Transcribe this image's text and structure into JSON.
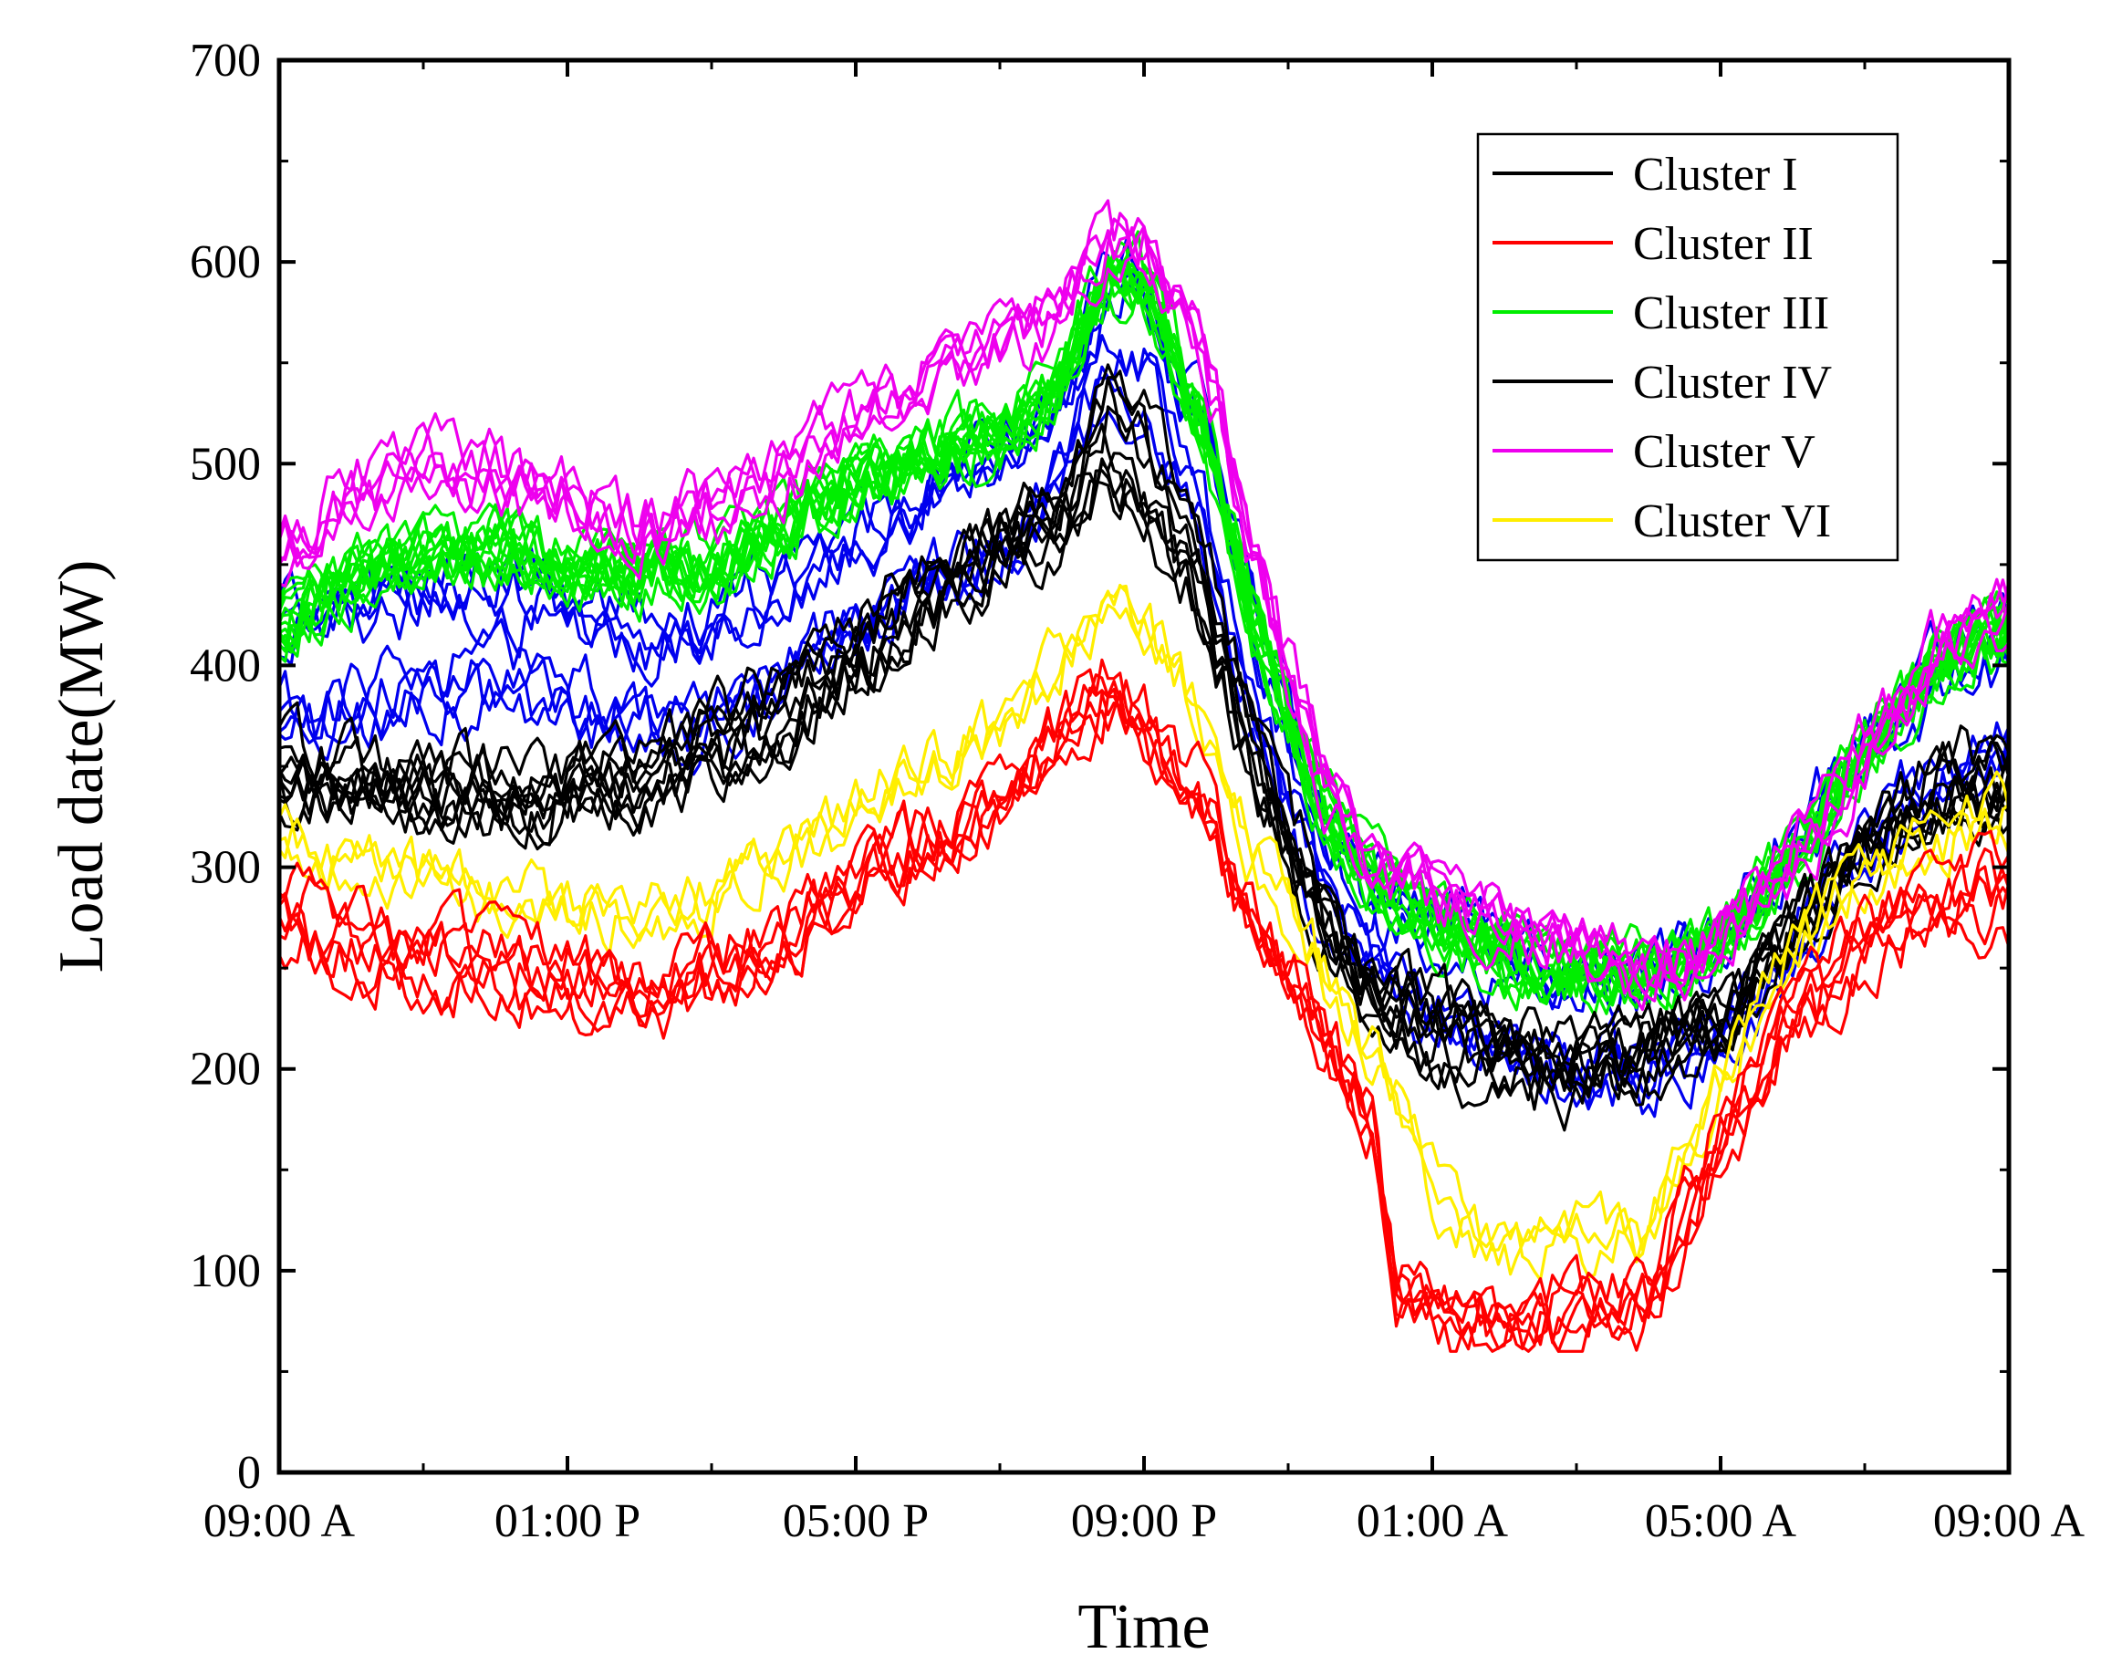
{
  "chart_data": {
    "type": "line",
    "title": "",
    "xlabel": "Time",
    "ylabel": "Load date(MW)",
    "ylim": [
      0,
      700
    ],
    "yticks": [
      0,
      100,
      200,
      300,
      400,
      500,
      600,
      700
    ],
    "x_range_hours": [
      0,
      24
    ],
    "xtick_labels": [
      "09:00 A",
      "01:00 P",
      "05:00 P",
      "09:00 P",
      "01:00 A",
      "05:00 A",
      "09:00 A"
    ],
    "xticks_hours": [
      0,
      4,
      8,
      12,
      16,
      20,
      24
    ],
    "legend_position": "top-right",
    "series": [
      {
        "name": "Cluster I",
        "color": "#000000",
        "profile": {
          "x_hours": [
            0,
            1,
            2,
            3,
            4,
            5,
            6,
            7,
            8,
            9,
            10,
            10.8,
            11.5,
            12,
            12.8,
            13.5,
            14.5,
            15.2,
            16,
            16.5,
            17,
            17.5,
            18,
            19,
            20,
            21,
            22,
            23,
            24
          ],
          "y": [
            330,
            330,
            325,
            320,
            325,
            330,
            340,
            360,
            390,
            420,
            445,
            460,
            490,
            470,
            420,
            340,
            260,
            235,
            222,
            215,
            205,
            200,
            198,
            205,
            215,
            260,
            300,
            320,
            330
          ]
        },
        "curve_count": 5
      },
      {
        "name": "Cluster II",
        "color": "#ff0000",
        "profile": {
          "x_hours": [
            0,
            1,
            2,
            3,
            4,
            5,
            6,
            7,
            8,
            9,
            10,
            10.8,
            11.5,
            12,
            12.8,
            13.5,
            14.5,
            15.2,
            15.5,
            16,
            17,
            18,
            19,
            20,
            21,
            22,
            23,
            24
          ],
          "y": [
            300,
            285,
            278,
            272,
            265,
            262,
            268,
            285,
            310,
            335,
            355,
            385,
            410,
            395,
            355,
            295,
            240,
            195,
            110,
            100,
            100,
            100,
            108,
            185,
            245,
            285,
            305,
            310
          ]
        },
        "curve_count": 6
      },
      {
        "name": "Cluster III",
        "color": "#00ee00",
        "profile": {
          "x_hours": [
            0,
            1,
            2,
            3,
            4,
            5,
            6,
            7,
            8,
            9,
            10,
            10.8,
            11.5,
            12,
            12.8,
            13.5,
            14.5,
            15.2,
            16,
            16.5,
            17,
            17.5,
            18,
            19,
            20,
            21,
            22,
            23,
            24
          ],
          "y": [
            420,
            445,
            455,
            460,
            450,
            445,
            450,
            470,
            490,
            505,
            515,
            540,
            595,
            590,
            525,
            425,
            330,
            295,
            275,
            265,
            258,
            252,
            248,
            250,
            265,
            305,
            360,
            400,
            420
          ]
        },
        "curve_count": 12
      },
      {
        "name": "Cluster IV",
        "color": "#000000",
        "profile": {
          "x_hours": [
            0,
            1,
            2,
            3,
            4,
            5,
            6,
            7,
            8,
            9,
            10,
            10.8,
            11.5,
            12,
            12.8,
            13.5,
            14.5,
            15.2,
            16,
            16.5,
            17,
            17.5,
            18,
            19,
            20,
            21,
            22,
            23,
            24
          ],
          "y": [
            340,
            335,
            330,
            328,
            330,
            340,
            355,
            375,
            405,
            435,
            455,
            470,
            520,
            500,
            440,
            355,
            265,
            215,
            195,
            188,
            180,
            178,
            175,
            182,
            200,
            255,
            300,
            330,
            340
          ]
        },
        "curve_count": 4
      },
      {
        "name": "Cluster V",
        "color": "#ee00ee",
        "profile": {
          "x_hours": [
            0,
            1,
            2,
            3,
            4,
            5,
            6,
            7,
            8,
            9,
            10,
            10.8,
            11.5,
            12,
            12.8,
            13.5,
            14.5,
            15.2,
            16,
            16.5,
            17,
            17.5,
            18,
            19,
            20,
            21,
            22,
            23,
            24
          ],
          "y": [
            470,
            500,
            515,
            510,
            495,
            480,
            490,
            510,
            535,
            555,
            570,
            590,
            625,
            620,
            575,
            470,
            360,
            315,
            300,
            295,
            290,
            282,
            275,
            265,
            275,
            320,
            370,
            420,
            440
          ]
        },
        "curve_count": 5
      },
      {
        "name": "Cluster VI",
        "color": "#ffee00",
        "profile": {
          "x_hours": [
            0,
            1,
            2,
            3,
            4,
            5,
            6,
            7,
            8,
            9,
            10,
            10.8,
            11.5,
            12,
            12.8,
            13.5,
            14.5,
            15.2,
            15.5,
            16,
            17,
            18,
            19,
            20,
            21,
            22,
            23,
            24
          ],
          "y": [
            310,
            295,
            290,
            282,
            275,
            272,
            280,
            300,
            325,
            345,
            365,
            400,
            430,
            415,
            375,
            305,
            245,
            200,
            180,
            140,
            100,
            110,
            110,
            190,
            255,
            290,
            310,
            320
          ]
        },
        "curve_count": 3
      },
      {
        "name": "(unlabeled blue)",
        "color": "#0000ee",
        "in_legend": false,
        "profile": {
          "x_hours": [
            0,
            1,
            2,
            3,
            4,
            5,
            6,
            7,
            8,
            9,
            10,
            10.8,
            11.5,
            12,
            12.8,
            13.5,
            14.5,
            15.2,
            16,
            16.5,
            17,
            17.5,
            18,
            19,
            20,
            21,
            22,
            23,
            24
          ],
          "y": [
            390,
            400,
            410,
            415,
            405,
            395,
            400,
            420,
            445,
            465,
            480,
            510,
            570,
            565,
            500,
            400,
            300,
            265,
            245,
            238,
            230,
            222,
            218,
            220,
            235,
            285,
            335,
            370,
            390
          ]
        },
        "curve_count": 8
      }
    ]
  }
}
